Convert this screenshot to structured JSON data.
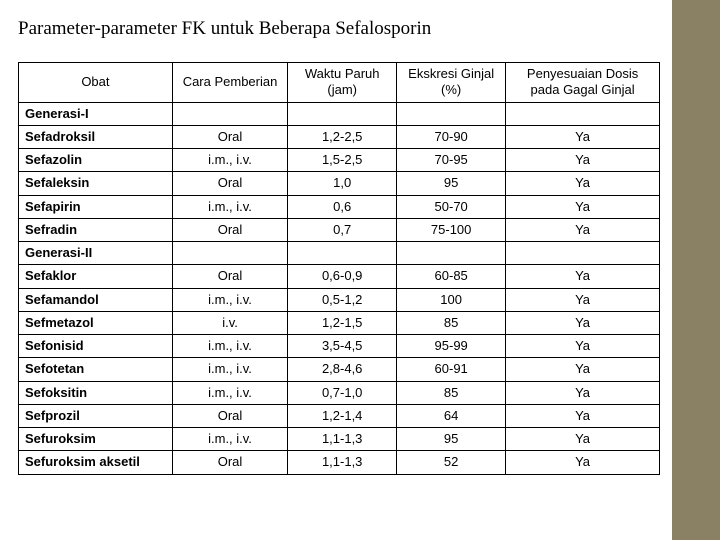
{
  "title": "Parameter-parameter FK untuk Beberapa Sefalosporin",
  "columns": [
    "Obat",
    "Cara Pemberian",
    "Waktu Paruh (jam)",
    "Ekskresi Ginjal (%)",
    "Penyesuaian Dosis pada Gagal Ginjal"
  ],
  "rows": [
    {
      "type": "section",
      "cells": [
        "Generasi-I",
        "",
        "",
        "",
        ""
      ]
    },
    {
      "type": "data",
      "cells": [
        "Sefadroksil",
        "Oral",
        "1,2-2,5",
        "70-90",
        "Ya"
      ]
    },
    {
      "type": "data",
      "cells": [
        "Sefazolin",
        "i.m., i.v.",
        "1,5-2,5",
        "70-95",
        "Ya"
      ]
    },
    {
      "type": "data",
      "cells": [
        "Sefaleksin",
        "Oral",
        "1,0",
        "95",
        "Ya"
      ]
    },
    {
      "type": "data",
      "cells": [
        "Sefapirin",
        "i.m., i.v.",
        "0,6",
        "50-70",
        "Ya"
      ]
    },
    {
      "type": "data",
      "cells": [
        "Sefradin",
        "Oral",
        "0,7",
        "75-100",
        "Ya"
      ]
    },
    {
      "type": "section",
      "cells": [
        "Generasi-II",
        "",
        "",
        "",
        ""
      ]
    },
    {
      "type": "data",
      "cells": [
        "Sefaklor",
        "Oral",
        "0,6-0,9",
        "60-85",
        "Ya"
      ]
    },
    {
      "type": "data",
      "cells": [
        "Sefamandol",
        "i.m., i.v.",
        "0,5-1,2",
        "100",
        "Ya"
      ]
    },
    {
      "type": "data",
      "cells": [
        "Sefmetazol",
        "i.v.",
        "1,2-1,5",
        "85",
        "Ya"
      ]
    },
    {
      "type": "data",
      "cells": [
        "Sefonisid",
        "i.m., i.v.",
        "3,5-4,5",
        "95-99",
        "Ya"
      ]
    },
    {
      "type": "data",
      "cells": [
        "Sefotetan",
        "i.m., i.v.",
        "2,8-4,6",
        "60-91",
        "Ya"
      ]
    },
    {
      "type": "data",
      "cells": [
        "Sefoksitin",
        "i.m., i.v.",
        "0,7-1,0",
        "85",
        "Ya"
      ]
    },
    {
      "type": "data",
      "cells": [
        "Sefprozil",
        "Oral",
        "1,2-1,4",
        "64",
        "Ya"
      ]
    },
    {
      "type": "data",
      "cells": [
        "Sefuroksim",
        "i.m., i.v.",
        "1,1-1,3",
        "95",
        "Ya"
      ]
    },
    {
      "type": "data",
      "cells": [
        "Sefuroksim aksetil",
        "Oral",
        "1,1-1,3",
        "52",
        "Ya"
      ]
    }
  ],
  "col_widths": [
    "24%",
    "18%",
    "17%",
    "17%",
    "24%"
  ]
}
